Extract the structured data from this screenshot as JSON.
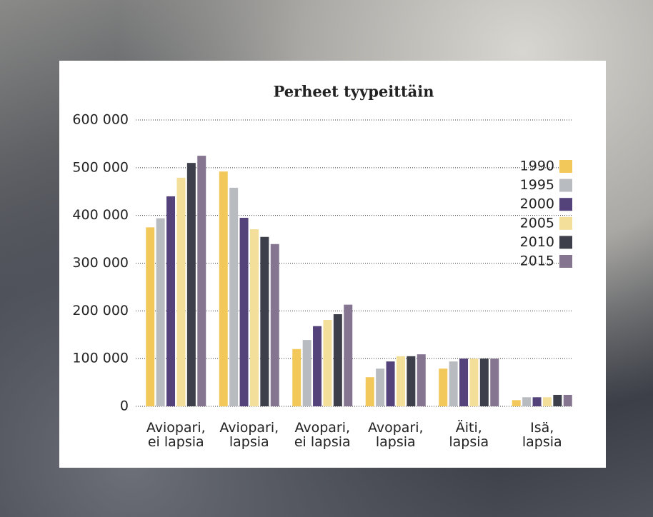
{
  "chart_data": {
    "type": "bar",
    "title": "Perheet tyypeittäin",
    "categories": [
      [
        "Aviopari,",
        "ei lapsia"
      ],
      [
        "Aviopari,",
        "lapsia"
      ],
      [
        "Avopari,",
        "ei lapsia"
      ],
      [
        "Avopari,",
        "lapsia"
      ],
      [
        "Äiti,",
        "lapsia"
      ],
      [
        "Isä,",
        "lapsia"
      ]
    ],
    "series": [
      {
        "name": "1990",
        "color": "#f2c85b",
        "values": [
          375000,
          492000,
          120000,
          61000,
          79000,
          13000
        ]
      },
      {
        "name": "1995",
        "color": "#b8bcc0",
        "values": [
          394000,
          458000,
          139000,
          79000,
          94000,
          19000
        ]
      },
      {
        "name": "2000",
        "color": "#54427a",
        "values": [
          440000,
          395000,
          168000,
          94000,
          100000,
          19000
        ]
      },
      {
        "name": "2005",
        "color": "#f3df9a",
        "values": [
          479000,
          371000,
          181000,
          105000,
          100000,
          19000
        ]
      },
      {
        "name": "2010",
        "color": "#3d3f4a",
        "values": [
          510000,
          355000,
          193000,
          105000,
          100000,
          24000
        ]
      },
      {
        "name": "2015",
        "color": "#857591",
        "values": [
          525000,
          340000,
          213000,
          109000,
          100000,
          24000
        ]
      }
    ],
    "ylim": [
      0,
      600000
    ],
    "yticks": [
      0,
      {
        "value": 100000,
        "label": "100 000"
      },
      {
        "value": 200000,
        "label": "200 000"
      },
      {
        "value": 300000,
        "label": "300 000"
      },
      {
        "value": 400000,
        "label": "400 000"
      },
      {
        "value": 500000,
        "label": "500 000"
      },
      {
        "value": 600000,
        "label": "600 000"
      }
    ],
    "grid": true,
    "legend": "right"
  }
}
